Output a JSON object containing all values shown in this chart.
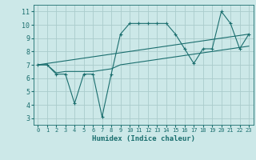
{
  "background_color": "#cce8e8",
  "grid_color": "#aacccc",
  "line_color": "#1a6e6e",
  "xlabel": "Humidex (Indice chaleur)",
  "xlim": [
    -0.5,
    23.5
  ],
  "ylim": [
    2.5,
    11.5
  ],
  "xticks": [
    0,
    1,
    2,
    3,
    4,
    5,
    6,
    7,
    8,
    9,
    10,
    11,
    12,
    13,
    14,
    15,
    16,
    17,
    18,
    19,
    20,
    21,
    22,
    23
  ],
  "yticks": [
    3,
    4,
    5,
    6,
    7,
    8,
    9,
    10,
    11
  ],
  "curve1_x": [
    0,
    1,
    2,
    3,
    4,
    5,
    6,
    7,
    8,
    9,
    10,
    11,
    12,
    13,
    14,
    15,
    16,
    17,
    18,
    19,
    20,
    21,
    22,
    23
  ],
  "curve1_y": [
    7,
    7,
    6.3,
    6.3,
    4.1,
    6.3,
    6.3,
    3.1,
    6.3,
    9.3,
    10.1,
    10.1,
    10.1,
    10.1,
    10.1,
    9.3,
    8.2,
    7.1,
    8.2,
    8.2,
    11.0,
    10.1,
    8.2,
    9.3
  ],
  "curve2_x": [
    0,
    23
  ],
  "curve2_y": [
    7.0,
    9.3
  ],
  "curve3_x": [
    0,
    1,
    2,
    3,
    4,
    5,
    6,
    7,
    8,
    9,
    10,
    11,
    12,
    13,
    14,
    15,
    16,
    17,
    18,
    19,
    20,
    21,
    22,
    23
  ],
  "curve3_y": [
    7.0,
    7.0,
    6.4,
    6.5,
    6.5,
    6.5,
    6.5,
    6.6,
    6.7,
    7.0,
    7.1,
    7.2,
    7.3,
    7.4,
    7.5,
    7.6,
    7.7,
    7.8,
    7.9,
    8.0,
    8.1,
    8.2,
    8.3,
    8.4
  ],
  "marker_style": "+",
  "marker_size": 3,
  "line_width": 0.8,
  "xlabel_fontsize": 6.5,
  "tick_fontsize_x": 5.0,
  "tick_fontsize_y": 6.0
}
